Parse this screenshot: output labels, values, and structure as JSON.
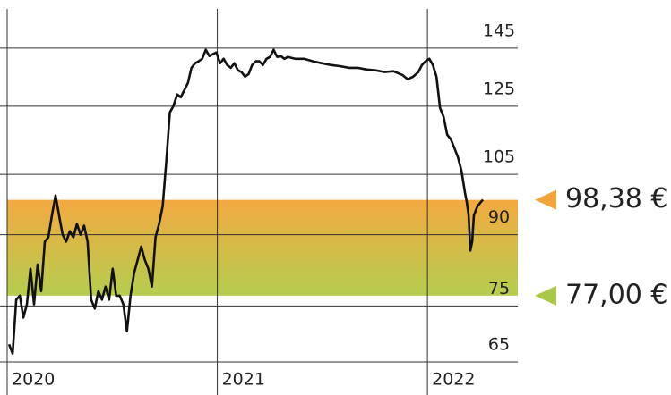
{
  "chart_data": {
    "type": "line",
    "x": [
      2020.009,
      2020.026,
      2020.043,
      2020.06,
      2020.077,
      2020.094,
      2020.111,
      2020.128,
      2020.145,
      2020.162,
      2020.179,
      2020.196,
      2020.213,
      2020.23,
      2020.247,
      2020.264,
      2020.281,
      2020.298,
      2020.315,
      2020.332,
      2020.349,
      2020.366,
      2020.383,
      2020.4,
      2020.417,
      2020.434,
      2020.451,
      2020.468,
      2020.485,
      2020.502,
      2020.519,
      2020.536,
      2020.553,
      2020.57,
      2020.587,
      2020.604,
      2020.621,
      2020.638,
      2020.655,
      2020.672,
      2020.689,
      2020.706,
      2020.723,
      2020.74,
      2020.757,
      2020.774,
      2020.791,
      2020.809,
      2020.826,
      2020.843,
      2020.86,
      2020.877,
      2020.894,
      2020.911,
      2020.928,
      2020.945,
      2020.962,
      2020.979,
      2020.996,
      2021.013,
      2021.03,
      2021.047,
      2021.064,
      2021.081,
      2021.098,
      2021.115,
      2021.132,
      2021.149,
      2021.166,
      2021.183,
      2021.2,
      2021.217,
      2021.234,
      2021.251,
      2021.268,
      2021.285,
      2021.302,
      2021.319,
      2021.336,
      2021.37,
      2021.413,
      2021.455,
      2021.498,
      2021.54,
      2021.583,
      2021.626,
      2021.668,
      2021.711,
      2021.753,
      2021.796,
      2021.838,
      2021.881,
      2021.906,
      2021.932,
      2021.957,
      2021.974,
      2021.991,
      2022.009,
      2022.026,
      2022.043,
      2022.06,
      2022.077,
      2022.094,
      2022.111,
      2022.128,
      2022.145,
      2022.162,
      2022.179,
      2022.187,
      2022.196,
      2022.204,
      2022.213,
      2022.221,
      2022.238,
      2022.255,
      2022.264
    ],
    "series": [
      {
        "color": "#111111",
        "values": [
          68.0,
          66.4,
          76.2,
          77.0,
          72.8,
          75.3,
          82.5,
          75.3,
          83.4,
          77.9,
          88.4,
          89.4,
          94.6,
          99.5,
          94.6,
          90.0,
          88.4,
          90.8,
          89.4,
          92.5,
          90.0,
          92.1,
          88.4,
          76.2,
          74.5,
          77.9,
          76.2,
          78.8,
          76.2,
          82.5,
          77.0,
          77.0,
          75.3,
          70.3,
          77.0,
          81.6,
          84.4,
          87.3,
          84.4,
          82.5,
          78.8,
          89.4,
          92.5,
          96.8,
          108.5,
          123.0,
          125.0,
          128.8,
          127.9,
          130.2,
          132.6,
          137.9,
          139.5,
          140.2,
          141.1,
          144.4,
          142.1,
          142.8,
          143.4,
          139.5,
          141.1,
          138.9,
          137.9,
          139.5,
          137.0,
          136.4,
          134.8,
          135.7,
          138.9,
          140.2,
          140.2,
          138.9,
          141.1,
          141.8,
          144.4,
          141.8,
          142.1,
          141.1,
          141.8,
          141.1,
          141.1,
          140.2,
          139.5,
          138.9,
          138.5,
          137.9,
          137.9,
          137.3,
          137.0,
          136.4,
          136.7,
          135.4,
          133.9,
          134.8,
          136.4,
          138.9,
          140.2,
          141.1,
          138.9,
          134.8,
          124.4,
          121.6,
          116.2,
          114.9,
          112.3,
          109.8,
          106.0,
          100.1,
          97.9,
          94.6,
          86.4,
          88.4,
          94.6,
          96.8,
          97.9,
          98.4
        ]
      }
    ],
    "xlim": [
      2020,
      2022.43
    ],
    "xticks": [
      2020,
      2021,
      2022
    ],
    "ylim": [
      65,
      164
    ],
    "yticks": [
      65,
      75,
      90,
      105,
      125,
      145
    ],
    "log_y": true,
    "grid": true,
    "markers": [
      {
        "value": 98.38,
        "label": "98,38 €",
        "color": "#f2a43c"
      },
      {
        "value": 77,
        "label": "77,00 €",
        "color": "#a9c84a"
      }
    ]
  }
}
